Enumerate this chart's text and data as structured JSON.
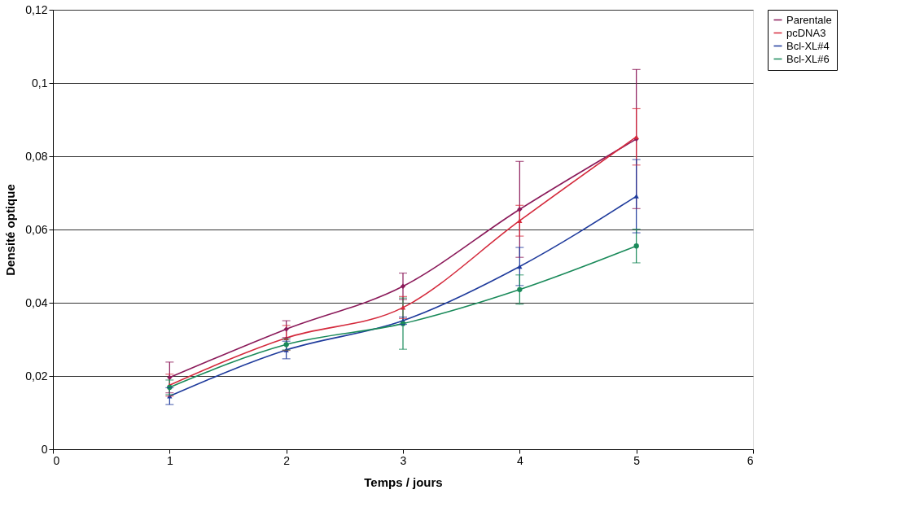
{
  "chart_data": {
    "type": "line",
    "xlabel": "Temps / jours",
    "ylabel": "Densité optique",
    "x": [
      1,
      2,
      3,
      4,
      5
    ],
    "series": [
      {
        "name": "Parentale",
        "color": "#8b1a5a",
        "marker": "diamond",
        "values": [
          0.0196,
          0.0328,
          0.0445,
          0.0655,
          0.0847
        ],
        "errors": [
          0.0042,
          0.0023,
          0.0036,
          0.0131,
          0.019
        ]
      },
      {
        "name": "pcDNA3",
        "color": "#d42a3c",
        "marker": "triangle",
        "values": [
          0.0175,
          0.0304,
          0.0387,
          0.0624,
          0.0853
        ],
        "errors": [
          0.003,
          0.0034,
          0.003,
          0.0042,
          0.0077
        ]
      },
      {
        "name": "Bcl-XL#4",
        "color": "#1f3b9c",
        "marker": "triangle",
        "values": [
          0.0145,
          0.0271,
          0.0351,
          0.0499,
          0.0691
        ],
        "errors": [
          0.0023,
          0.0024,
          0.001,
          0.0052,
          0.01
        ]
      },
      {
        "name": "Bcl-XL#6",
        "color": "#1a8a5a",
        "marker": "circle",
        "values": [
          0.0169,
          0.0286,
          0.0343,
          0.0436,
          0.0555
        ],
        "errors": [
          0.002,
          0.0015,
          0.007,
          0.004,
          0.0046
        ]
      }
    ],
    "xlim": [
      0,
      6
    ],
    "xticks": [
      0,
      1,
      2,
      3,
      4,
      5,
      6
    ],
    "ylim": [
      0,
      0.12
    ],
    "yticks": [
      0,
      {
        "value": 0.02,
        "label": "0,02"
      },
      {
        "value": 0.04,
        "label": "0,04"
      },
      {
        "value": 0.06,
        "label": "0,06"
      },
      {
        "value": 0.08,
        "label": "0,08"
      },
      {
        "value": 0.1,
        "label": "0,1"
      },
      {
        "value": 0.12,
        "label": "0,12"
      }
    ],
    "grid": "y",
    "legend": "right",
    "line_style": "solid"
  }
}
